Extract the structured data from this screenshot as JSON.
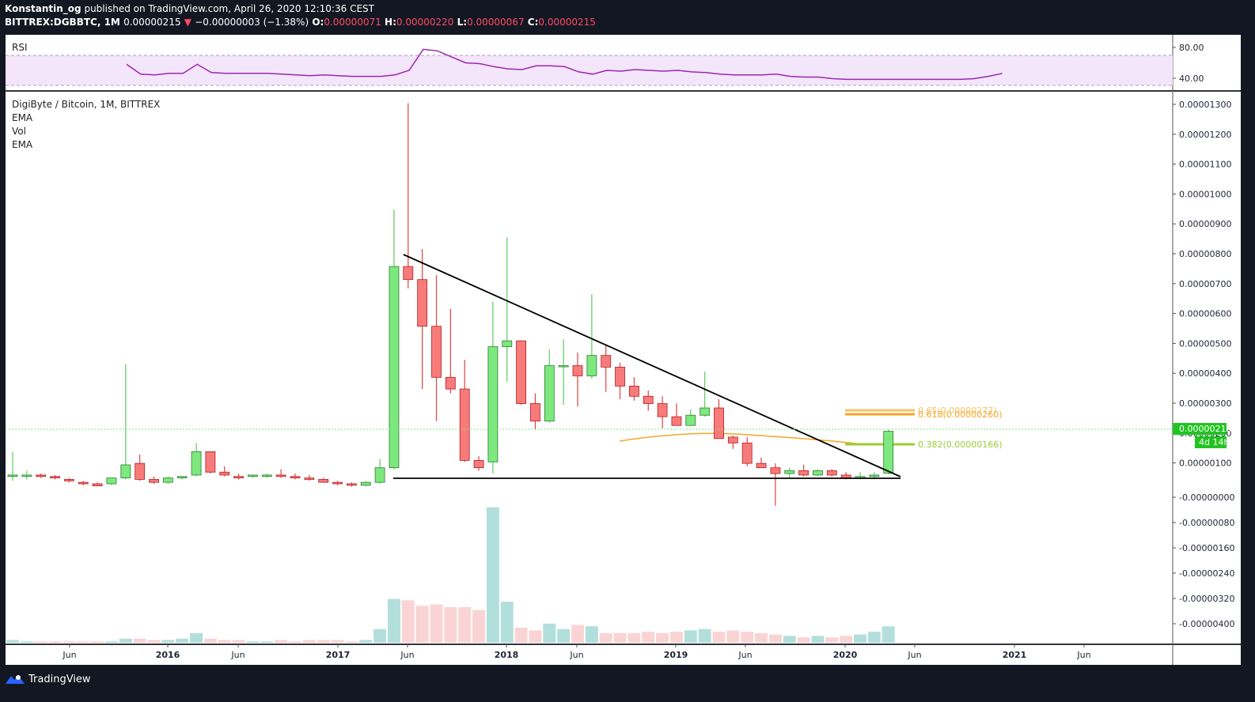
{
  "header": {
    "author": "Konstantin_og",
    "published_text": "published on TradingView.com, April 26, 2020 12:10:36 CEST",
    "symbol": "BITTREX:DGBBTC, 1M",
    "last": "0.00000215",
    "arrow": "▼",
    "change": "−0.00000003 (−1.38%)",
    "o_label": "O:",
    "o_value": "0.00000071",
    "h_label": "H:",
    "h_value": "0.00000220",
    "l_label": "L:",
    "l_value": "0.00000067",
    "c_label": "C:",
    "c_value": "0.00000215"
  },
  "legend": {
    "rsi": "RSI",
    "title": "DigiByte / Bitcoin, 1M, BITTREX",
    "items": [
      "EMA",
      "Vol",
      "EMA"
    ]
  },
  "footer": {
    "brand": "TradingView",
    "logo_icon": "tradingview-logo-icon"
  },
  "colors": {
    "up": "#7de87d",
    "down": "#f77b7b",
    "background": "#131722",
    "ema": "#f5a623",
    "rsi": "#9c27b0"
  },
  "chart_data": {
    "type": "candlestick",
    "title": "DigiByte / Bitcoin, 1M, BITTREX",
    "interval": "1M",
    "price_ticks": [
      "0.00001300",
      "0.00001200",
      "0.00001100",
      "0.00001000",
      "0.00000900",
      "0.00000800",
      "0.00000700",
      "0.00000600",
      "0.00000500",
      "0.00000400",
      "0.00000300",
      "0.00000200",
      "0.00000100",
      "-0.00000000",
      "-0.00000080",
      "-0.00000160",
      "-0.00000240",
      "-0.00000320",
      "-0.00000400"
    ],
    "rsi_ticks": [
      "80.00",
      "40.00"
    ],
    "time_ticks": [
      "Jun",
      "2016",
      "Jun",
      "2017",
      "Jun",
      "2018",
      "Jun",
      "2019",
      "Jun",
      "2020",
      "Jun",
      "2021",
      "Jun"
    ],
    "last_price_label": "0.00000215",
    "countdown_label": "4d 14h",
    "fib_levels": [
      {
        "label": "0.65(0.00000277)",
        "value": 2.77e-06,
        "color": "#f5c26b"
      },
      {
        "label": "0.618(0.00000260)",
        "value": 2.6e-06,
        "color": "#f5a623"
      },
      {
        "label": "0.382(0.00000166)",
        "value": 1.66e-06,
        "color": "#9acd32"
      }
    ],
    "trendline": {
      "from": [
        7.8e-06
      ],
      "to": [
        6.7e-07
      ]
    },
    "support": 6.2e-07,
    "candles": [
      {
        "o": 0.6,
        "h": 1.45,
        "l": 0.45,
        "c": 0.65
      },
      {
        "o": 0.6,
        "h": 0.8,
        "l": 0.5,
        "c": 0.65
      },
      {
        "o": 0.65,
        "h": 0.7,
        "l": 0.55,
        "c": 0.6
      },
      {
        "o": 0.6,
        "h": 0.65,
        "l": 0.5,
        "c": 0.55
      },
      {
        "o": 0.5,
        "h": 0.55,
        "l": 0.4,
        "c": 0.45
      },
      {
        "o": 0.4,
        "h": 0.45,
        "l": 0.3,
        "c": 0.35
      },
      {
        "o": 0.35,
        "h": 0.4,
        "l": 0.3,
        "c": 0.28
      },
      {
        "o": 0.35,
        "h": 0.55,
        "l": 0.3,
        "c": 0.55
      },
      {
        "o": 0.55,
        "h": 4.45,
        "l": 0.5,
        "c": 1.0
      },
      {
        "o": 1.05,
        "h": 1.35,
        "l": 0.45,
        "c": 0.5
      },
      {
        "o": 0.5,
        "h": 0.6,
        "l": 0.35,
        "c": 0.4
      },
      {
        "o": 0.4,
        "h": 0.6,
        "l": 0.35,
        "c": 0.55
      },
      {
        "o": 0.55,
        "h": 0.62,
        "l": 0.5,
        "c": 0.6
      },
      {
        "o": 0.65,
        "h": 1.75,
        "l": 0.6,
        "c": 1.45
      },
      {
        "o": 1.45,
        "h": 1.45,
        "l": 0.7,
        "c": 0.75
      },
      {
        "o": 0.75,
        "h": 0.95,
        "l": 0.6,
        "c": 0.65
      },
      {
        "o": 0.6,
        "h": 0.7,
        "l": 0.5,
        "c": 0.55
      },
      {
        "o": 0.6,
        "h": 0.65,
        "l": 0.55,
        "c": 0.65
      },
      {
        "o": 0.6,
        "h": 0.7,
        "l": 0.55,
        "c": 0.65
      },
      {
        "o": 0.65,
        "h": 0.85,
        "l": 0.55,
        "c": 0.6
      },
      {
        "o": 0.6,
        "h": 0.7,
        "l": 0.5,
        "c": 0.55
      },
      {
        "o": 0.55,
        "h": 0.65,
        "l": 0.45,
        "c": 0.5
      },
      {
        "o": 0.5,
        "h": 0.55,
        "l": 0.4,
        "c": 0.4
      },
      {
        "o": 0.4,
        "h": 0.45,
        "l": 0.3,
        "c": 0.35
      },
      {
        "o": 0.35,
        "h": 0.4,
        "l": 0.25,
        "c": 0.3
      },
      {
        "o": 0.3,
        "h": 0.45,
        "l": 0.25,
        "c": 0.4
      },
      {
        "o": 0.4,
        "h": 1.2,
        "l": 0.35,
        "c": 0.9
      },
      {
        "o": 0.9,
        "h": 9.75,
        "l": 0.85,
        "c": 7.8
      },
      {
        "o": 7.8,
        "h": 13.4,
        "l": 7.05,
        "c": 7.35
      },
      {
        "o": 7.35,
        "h": 8.4,
        "l": 3.6,
        "c": 5.75
      },
      {
        "o": 5.75,
        "h": 7.5,
        "l": 2.5,
        "c": 4.0
      },
      {
        "o": 4.0,
        "h": 6.35,
        "l": 3.45,
        "c": 3.6
      },
      {
        "o": 3.6,
        "h": 4.6,
        "l": 1.1,
        "c": 1.15
      },
      {
        "o": 1.15,
        "h": 1.3,
        "l": 0.8,
        "c": 0.9
      },
      {
        "o": 1.1,
        "h": 6.6,
        "l": 0.7,
        "c": 5.05
      },
      {
        "o": 5.05,
        "h": 8.8,
        "l": 3.85,
        "c": 5.25
      },
      {
        "o": 5.25,
        "h": 5.2,
        "l": 3.05,
        "c": 3.1
      },
      {
        "o": 3.1,
        "h": 3.45,
        "l": 2.2,
        "c": 2.5
      },
      {
        "o": 2.5,
        "h": 4.95,
        "l": 2.45,
        "c": 4.4
      },
      {
        "o": 4.4,
        "h": 5.3,
        "l": 3.05,
        "c": 4.4
      },
      {
        "o": 4.4,
        "h": 4.85,
        "l": 3.0,
        "c": 4.05
      },
      {
        "o": 4.05,
        "h": 6.85,
        "l": 3.95,
        "c": 4.75
      },
      {
        "o": 4.75,
        "h": 5.1,
        "l": 3.5,
        "c": 4.35
      },
      {
        "o": 4.35,
        "h": 4.5,
        "l": 3.25,
        "c": 3.7
      },
      {
        "o": 3.7,
        "h": 4.0,
        "l": 3.2,
        "c": 3.35
      },
      {
        "o": 3.35,
        "h": 3.55,
        "l": 2.85,
        "c": 3.1
      },
      {
        "o": 3.1,
        "h": 3.35,
        "l": 2.25,
        "c": 2.65
      },
      {
        "o": 2.65,
        "h": 3.1,
        "l": 2.45,
        "c": 2.35
      },
      {
        "o": 2.35,
        "h": 2.9,
        "l": 2.35,
        "c": 2.7
      },
      {
        "o": 2.7,
        "h": 4.2,
        "l": 2.65,
        "c": 2.95
      },
      {
        "o": 2.95,
        "h": 3.25,
        "l": 1.9,
        "c": 1.9
      },
      {
        "o": 1.95,
        "h": 2.0,
        "l": 1.55,
        "c": 1.75
      },
      {
        "o": 1.75,
        "h": 1.95,
        "l": 0.95,
        "c": 1.05
      },
      {
        "o": 1.05,
        "h": 1.25,
        "l": 0.95,
        "c": 0.9
      },
      {
        "o": 0.9,
        "h": 1.05,
        "l": -0.4,
        "c": 0.7
      },
      {
        "o": 0.7,
        "h": 0.9,
        "l": 0.55,
        "c": 0.8
      },
      {
        "o": 0.8,
        "h": 1.0,
        "l": 0.6,
        "c": 0.65
      },
      {
        "o": 0.65,
        "h": 0.85,
        "l": 0.6,
        "c": 0.8
      },
      {
        "o": 0.8,
        "h": 0.85,
        "l": 0.6,
        "c": 0.65
      },
      {
        "o": 0.65,
        "h": 0.75,
        "l": 0.5,
        "c": 0.55
      },
      {
        "o": 0.55,
        "h": 0.75,
        "l": 0.5,
        "c": 0.6
      },
      {
        "o": 0.6,
        "h": 0.75,
        "l": 0.5,
        "c": 0.65
      },
      {
        "o": 0.71,
        "h": 2.2,
        "l": 0.67,
        "c": 2.15
      }
    ],
    "volume": [
      2,
      1,
      1,
      1,
      1,
      1,
      1,
      1,
      3,
      3,
      2,
      2,
      3,
      7,
      3,
      2,
      2,
      1,
      1,
      2,
      1,
      2,
      2,
      2,
      1,
      2,
      10,
      32,
      31,
      27,
      28,
      26,
      26,
      24,
      99,
      30,
      11,
      9,
      14,
      10,
      13,
      12,
      7,
      7,
      7,
      8,
      7,
      8,
      9,
      10,
      8,
      9,
      8,
      7,
      6,
      5,
      4,
      5,
      4,
      5,
      6,
      8,
      12
    ],
    "rsi": [
      68,
      55,
      54,
      56,
      56,
      68,
      57,
      56,
      56,
      56,
      56,
      55,
      54,
      53,
      54,
      53,
      52,
      52,
      52,
      54,
      60,
      88,
      86,
      78,
      70,
      69,
      65,
      62,
      61,
      66,
      66,
      65,
      58,
      55,
      60,
      59,
      61,
      60,
      59,
      60,
      58,
      57,
      55,
      54,
      54,
      54,
      55,
      52,
      51,
      51,
      49,
      48,
      48,
      48,
      48,
      48,
      48,
      48,
      48,
      48,
      49,
      52,
      56
    ]
  }
}
